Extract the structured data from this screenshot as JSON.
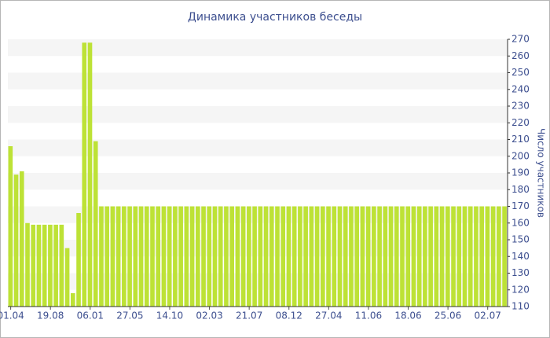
{
  "chart_data": {
    "type": "bar",
    "title": "Динамика участников беседы",
    "y_label": "Число участников",
    "categories": [
      "01.04",
      null,
      null,
      null,
      null,
      null,
      null,
      "19.08",
      null,
      null,
      null,
      null,
      null,
      null,
      "06.01",
      null,
      null,
      null,
      null,
      null,
      null,
      "27.05",
      null,
      null,
      null,
      null,
      null,
      null,
      "14.10",
      null,
      null,
      null,
      null,
      null,
      null,
      "02.03",
      null,
      null,
      null,
      null,
      null,
      null,
      "21.07",
      null,
      null,
      null,
      null,
      null,
      null,
      "08.12",
      null,
      null,
      null,
      null,
      null,
      null,
      "27.04",
      null,
      null,
      null,
      null,
      null,
      null,
      "11.06",
      null,
      null,
      null,
      null,
      null,
      null,
      "18.06",
      null,
      null,
      null,
      null,
      null,
      null,
      "25.06",
      null,
      null,
      null,
      null,
      null,
      null,
      "02.07",
      null,
      null,
      null
    ],
    "values": [
      206,
      189,
      191,
      160,
      159,
      159,
      159,
      159,
      159,
      159,
      145,
      118,
      166,
      268,
      268,
      209,
      170,
      170,
      170,
      170,
      170,
      170,
      170,
      170,
      170,
      170,
      170,
      170,
      170,
      170,
      170,
      170,
      170,
      170,
      170,
      170,
      170,
      170,
      170,
      170,
      170,
      170,
      170,
      170,
      170,
      170,
      170,
      170,
      170,
      170,
      170,
      170,
      170,
      170,
      170,
      170,
      170,
      170,
      170,
      170,
      170,
      170,
      170,
      170,
      170,
      170,
      170,
      170,
      170,
      170,
      170,
      170,
      170,
      170,
      170,
      170,
      170,
      170,
      170,
      170,
      170,
      170,
      170,
      170,
      170,
      170,
      170,
      170
    ],
    "color": "#bde236",
    "ylim": [
      110,
      270
    ],
    "yticks": [
      110,
      120,
      130,
      140,
      150,
      160,
      170,
      180,
      190,
      200,
      210,
      220,
      230,
      240,
      250,
      260,
      270
    ],
    "y_axis_side": "right",
    "striped_background": true
  }
}
